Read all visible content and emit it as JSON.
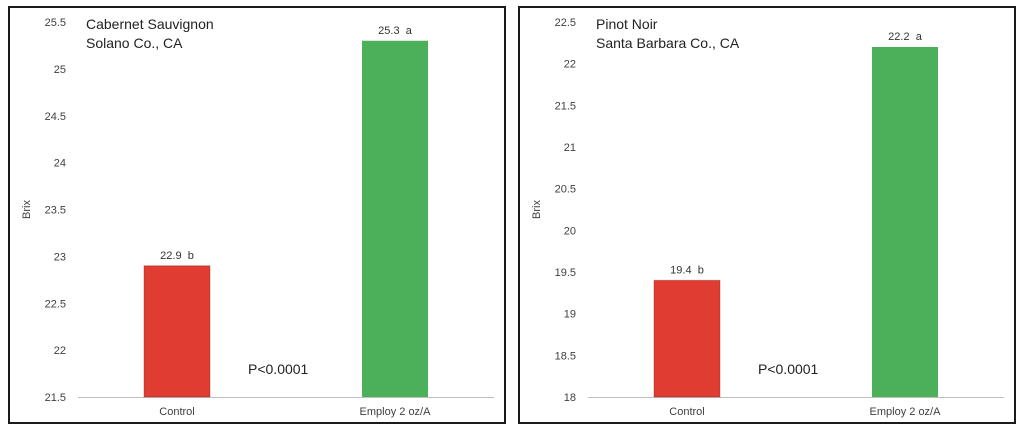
{
  "chart_data": [
    {
      "type": "bar",
      "title": "Cabernet Sauvignon",
      "subtitle": "Solano Co., CA",
      "xlabel": "",
      "ylabel": "Brix",
      "categories": [
        "Control",
        "Employ 2 oz/A"
      ],
      "values": [
        22.9,
        25.3
      ],
      "data_labels": [
        "22.9  b",
        "25.3  a"
      ],
      "colors": [
        "#e03c31",
        "#4caf5a"
      ],
      "ylim": [
        21.5,
        25.5
      ],
      "yticks": [
        "21.5",
        "22",
        "22.5",
        "23",
        "23.5",
        "24",
        "24.5",
        "25",
        "25.5"
      ],
      "annotation": "P<0.0001",
      "grid": false,
      "legend": "none"
    },
    {
      "type": "bar",
      "title": "Pinot Noir",
      "subtitle": "Santa Barbara Co., CA",
      "xlabel": "",
      "ylabel": "Brix",
      "categories": [
        "Control",
        "Employ 2 oz/A"
      ],
      "values": [
        19.4,
        22.2
      ],
      "data_labels": [
        "19.4  b",
        "22.2  a"
      ],
      "colors": [
        "#e03c31",
        "#4caf5a"
      ],
      "ylim": [
        18,
        22.5
      ],
      "yticks": [
        "18",
        "18.5",
        "19",
        "19.5",
        "20",
        "20.5",
        "21",
        "21.5",
        "22",
        "22.5"
      ],
      "annotation": "P<0.0001",
      "grid": false,
      "legend": "none"
    }
  ]
}
